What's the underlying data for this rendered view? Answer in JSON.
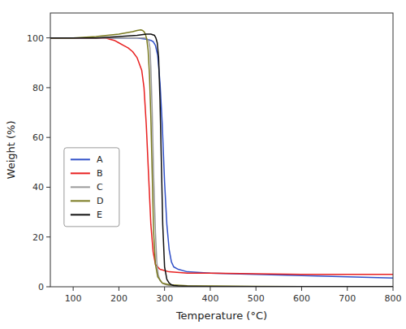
{
  "chart_data": {
    "type": "line",
    "xlabel": "Temperature (°C)",
    "ylabel": "Weight (%)",
    "xlim": [
      50,
      800
    ],
    "ylim": [
      0,
      110
    ],
    "xticks": [
      100,
      200,
      300,
      400,
      500,
      600,
      700,
      800
    ],
    "yticks": [
      0,
      20,
      40,
      60,
      80,
      100
    ],
    "grid": false,
    "legend": "lower left",
    "series": [
      {
        "name": "A",
        "color": "#3050C8",
        "x": [
          50,
          100,
          150,
          200,
          240,
          260,
          270,
          275,
          280,
          285,
          290,
          295,
          300,
          305,
          310,
          315,
          320,
          330,
          350,
          400,
          500,
          600,
          700,
          800
        ],
        "values": [
          100,
          100,
          100,
          100,
          100,
          99.5,
          99.0,
          98.5,
          97.0,
          93.0,
          82.0,
          65.0,
          42.0,
          25.0,
          15.0,
          10.0,
          8.0,
          7.0,
          6.0,
          5.5,
          5.0,
          4.5,
          4.0,
          3.5
        ]
      },
      {
        "name": "B",
        "color": "#E82020",
        "x": [
          50,
          100,
          150,
          170,
          180,
          190,
          200,
          210,
          220,
          230,
          240,
          250,
          255,
          260,
          265,
          270,
          275,
          280,
          290,
          310,
          350,
          400,
          500,
          600,
          700,
          800
        ],
        "values": [
          100,
          100,
          100,
          100,
          99.5,
          99.0,
          98.0,
          97.0,
          96.0,
          94.5,
          92.0,
          87.0,
          80.0,
          65.0,
          45.0,
          25.0,
          14.0,
          9.0,
          7.0,
          6.0,
          5.5,
          5.5,
          5.2,
          5.0,
          5.0,
          5.0
        ]
      },
      {
        "name": "C",
        "color": "#9A9A9A",
        "x": [
          50,
          100,
          150,
          200,
          240,
          255,
          260,
          265,
          268,
          270,
          273,
          276,
          280,
          283,
          286,
          290,
          295,
          300,
          310,
          330,
          400,
          500,
          600,
          700,
          800
        ],
        "values": [
          100,
          100,
          100,
          100,
          100,
          100,
          99.8,
          99.0,
          96.0,
          88.0,
          70.0,
          45.0,
          22.0,
          10.0,
          5.0,
          2.5,
          1.5,
          1.0,
          0.5,
          0.3,
          0.2,
          0.1,
          0.1,
          0.1,
          0.1
        ]
      },
      {
        "name": "D",
        "color": "#7A7A20",
        "x": [
          50,
          100,
          150,
          200,
          230,
          240,
          248,
          252,
          255,
          258,
          261,
          264,
          267,
          270,
          273,
          276,
          280,
          285,
          295,
          310,
          350,
          400,
          500,
          600,
          700,
          800
        ],
        "values": [
          100,
          100,
          100.5,
          101.5,
          102.5,
          103.0,
          103.2,
          103.0,
          102.5,
          101.5,
          99.5,
          95.0,
          85.0,
          68.0,
          45.0,
          22.0,
          9.0,
          4.0,
          1.5,
          0.8,
          0.4,
          0.3,
          0.2,
          0.1,
          0.1,
          0.1
        ]
      },
      {
        "name": "E",
        "color": "#101010",
        "x": [
          50,
          100,
          150,
          200,
          240,
          260,
          270,
          278,
          281,
          284,
          287,
          290,
          293,
          296,
          300,
          305,
          310,
          315,
          320,
          330,
          350,
          400,
          500,
          600,
          700,
          800
        ],
        "values": [
          100,
          100,
          100,
          100.5,
          101.0,
          101.5,
          101.5,
          101.0,
          100.0,
          98.0,
          92.0,
          75.0,
          50.0,
          25.0,
          8.0,
          3.0,
          1.5,
          0.8,
          0.5,
          0.3,
          0.2,
          0.1,
          0.1,
          0.1,
          0.1,
          0.1
        ]
      }
    ]
  }
}
